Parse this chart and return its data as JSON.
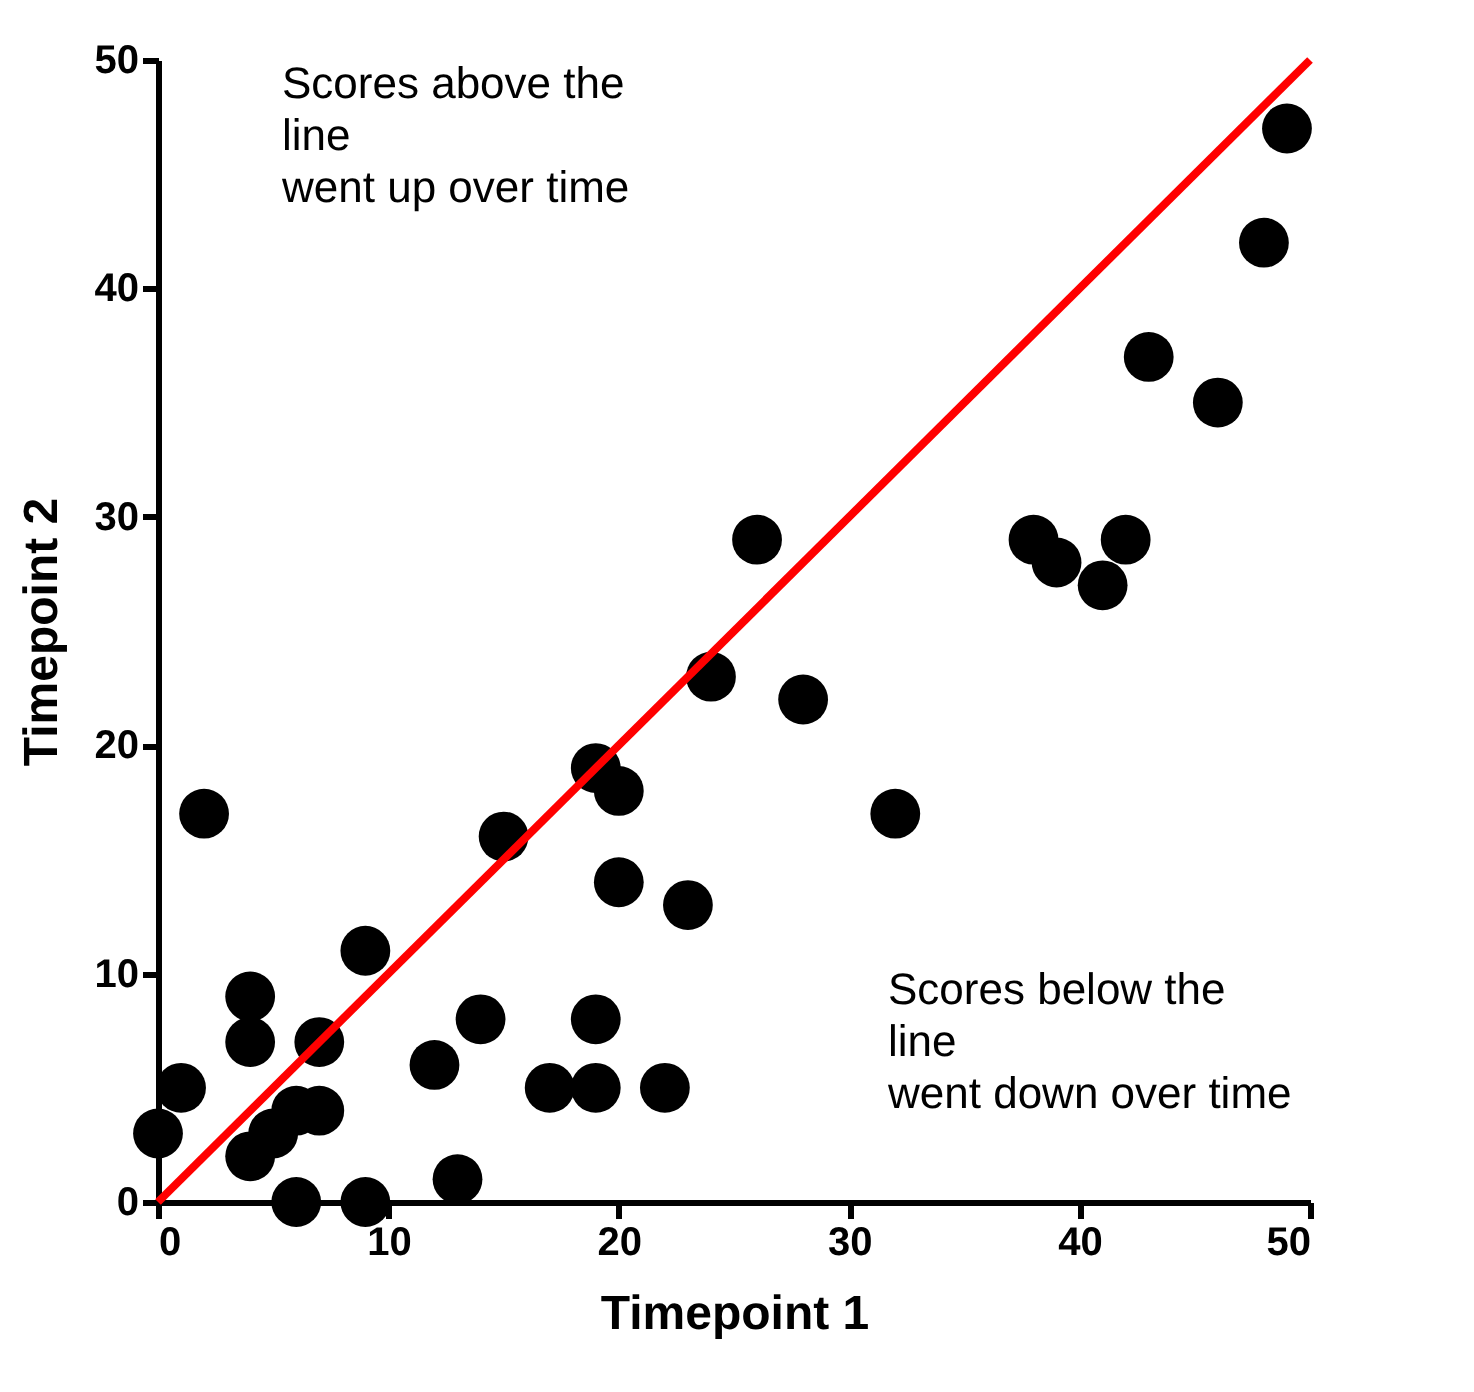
{
  "chart_data": {
    "type": "scatter",
    "xlabel": "Timepoint 1",
    "ylabel": "Timepoint 2",
    "xlim": [
      0,
      50
    ],
    "ylim": [
      0,
      50
    ],
    "xticks": [
      0,
      10,
      20,
      30,
      40,
      50
    ],
    "yticks": [
      0,
      10,
      20,
      30,
      40,
      50
    ],
    "grid": false,
    "annotations": [
      "Scores above the\nline\nwent up over time",
      "Scores below the\nline\nwent down over time"
    ],
    "series": [
      {
        "color": "#000000",
        "marker": "circle",
        "x": [
          0,
          1,
          2,
          4,
          4,
          4,
          5,
          6,
          6,
          7,
          7,
          9,
          9,
          12,
          13,
          14,
          15,
          17,
          19,
          19,
          19,
          20,
          20,
          22,
          23,
          24,
          26,
          28,
          32,
          38,
          39,
          41,
          42,
          43,
          46,
          48,
          49
        ],
        "values": [
          3,
          5,
          17,
          9,
          7,
          2,
          3,
          4,
          0,
          4,
          7,
          11,
          0,
          6,
          1,
          8,
          16,
          5,
          19,
          8,
          5,
          18,
          14,
          5,
          13,
          23,
          29,
          22,
          17,
          29,
          28,
          27,
          29,
          37,
          35,
          42,
          47
        ]
      },
      {
        "type": "line",
        "color": "#ff0000",
        "line_style": "solid",
        "x": [
          0,
          50
        ],
        "values": [
          0,
          50
        ]
      }
    ]
  }
}
